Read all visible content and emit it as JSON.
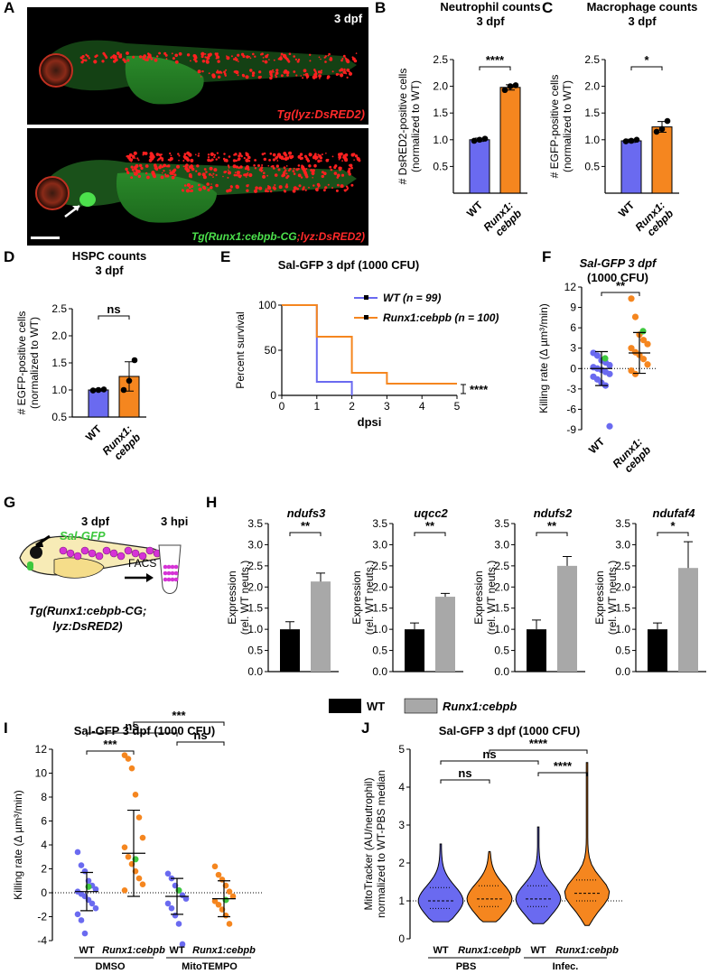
{
  "panel_letters": [
    "A",
    "B",
    "C",
    "D",
    "E",
    "F",
    "G",
    "H",
    "I",
    "J"
  ],
  "colors": {
    "wt": "#6a6af0",
    "runx": "#f5861f",
    "green": "#3ec83e",
    "black": "#000000",
    "grey": "#a8a8a8"
  },
  "panel_a": {
    "stage": "3 dpf",
    "label_top": "Tg(lyz:DsRED2)",
    "label_bottom_green": "Tg(Runx1:cebpb-CG",
    "label_bottom_red": ";lyz:DsRED2)"
  },
  "panel_g": {
    "stage_left": "3 dpf",
    "stage_right": "3 hpi",
    "sal_label": "Sal-GFP",
    "facs_label": "FACS",
    "line1": "Tg(Runx1:cebpb-CG;",
    "line2": "lyz:DsRED2)"
  },
  "chart_data": [
    {
      "id": "B",
      "type": "bar",
      "title": "Neutrophil counts",
      "subtitle": "3 dpf",
      "ylabel": [
        "# DsRED2-positive cells",
        "(normalized to WT)"
      ],
      "ylim": [
        0,
        2.5
      ],
      "yticks": [
        "0.5",
        "1.0",
        "1.5",
        "2.0",
        "2.5"
      ],
      "categories": [
        "WT",
        "Runx1: cebpb"
      ],
      "values": [
        1.0,
        1.98
      ],
      "errors": [
        0.03,
        0.05
      ],
      "points": [
        [
          0.98,
          1.0,
          1.02
        ],
        [
          1.93,
          2.0,
          2.02
        ]
      ],
      "significance": "****"
    },
    {
      "id": "C",
      "type": "bar",
      "title": "Macrophage counts",
      "subtitle": "3 dpf",
      "ylabel": [
        "# EGFP-positive cells",
        "(normalized to WT)"
      ],
      "ylim": [
        0,
        2.5
      ],
      "yticks": [
        "0.5",
        "1.0",
        "1.5",
        "2.0",
        "2.5"
      ],
      "categories": [
        "WT",
        "Runx1: cebpb"
      ],
      "values": [
        0.98,
        1.24
      ],
      "errors": [
        0.03,
        0.1
      ],
      "points": [
        [
          0.97,
          0.98,
          1.0
        ],
        [
          1.15,
          1.2,
          1.35
        ]
      ],
      "significance": "*"
    },
    {
      "id": "D",
      "type": "bar",
      "title": "HSPC counts",
      "subtitle": "3 dpf",
      "ylabel": [
        "# EGFP-positive cells",
        "(normalized to WT)"
      ],
      "ylim": [
        0.5,
        2.5
      ],
      "yticks": [
        "0.5",
        "1.0",
        "1.5",
        "2.0",
        "2.5"
      ],
      "categories": [
        "WT",
        "Runx1: cebpb"
      ],
      "values": [
        1.0,
        1.25
      ],
      "errors": [
        0.02,
        0.27
      ],
      "points": [
        [
          0.99,
          1.0,
          1.01
        ],
        [
          1.0,
          1.17,
          1.55
        ]
      ],
      "significance": "ns"
    },
    {
      "id": "E",
      "type": "line",
      "title": "Sal-GFP 3 dpf (1000 CFU)",
      "xlabel": "dpsi",
      "ylabel": "Percent survival",
      "xlim": [
        0,
        5
      ],
      "ylim": [
        0,
        100
      ],
      "xticks": [
        "0",
        "1",
        "2",
        "3",
        "4",
        "5"
      ],
      "yticks": [
        "0",
        "50",
        "100"
      ],
      "series": [
        {
          "name": "WT (n = 99)",
          "x": [
            0,
            1,
            1,
            2,
            2
          ],
          "y": [
            100,
            100,
            15,
            15,
            0
          ]
        },
        {
          "name": "Runx1:cebpb (n = 100)",
          "x": [
            0,
            1,
            1,
            2,
            2,
            3,
            3,
            5
          ],
          "y": [
            100,
            100,
            65,
            65,
            25,
            25,
            13,
            13
          ]
        }
      ],
      "significance": "****"
    },
    {
      "id": "F",
      "type": "scatter",
      "title": "Sal-GFP 3 dpf",
      "subtitle": "(1000 CFU)",
      "ylabel": "Killing rate (Δ µm³/min)",
      "ylim": [
        -9,
        12
      ],
      "yticks": [
        "-9",
        "-6",
        "-3",
        "0",
        "3",
        "6",
        "9",
        "12"
      ],
      "categories": [
        "WT",
        "Runx1: cebpb"
      ],
      "means": [
        0.0,
        2.3
      ],
      "sd": [
        2.5,
        3.0
      ],
      "points": [
        [
          2.3,
          1.9,
          1.2,
          0.9,
          0.5,
          0.2,
          0.0,
          -0.2,
          -0.5,
          -0.8,
          -1.2,
          -1.6,
          -2.1,
          -2.5,
          -8.5
        ],
        [
          10.3,
          7.6,
          5.0,
          4.2,
          3.6,
          3.0,
          2.4,
          2.0,
          1.4,
          0.6,
          -0.3,
          -0.8
        ]
      ],
      "highlight": [
        [
          1.5
        ],
        [
          5.5
        ]
      ],
      "significance": "**"
    },
    {
      "id": "H",
      "type": "bar",
      "ylabel": [
        "Expression",
        "(rel. WT neuts.)"
      ],
      "ylim": [
        0,
        3.5
      ],
      "yticks": [
        "0.0",
        "0.5",
        "1.0",
        "1.5",
        "2.0",
        "2.5",
        "3.0",
        "3.5"
      ],
      "genes": [
        {
          "name": "ndufs3",
          "values": [
            1.0,
            2.13
          ],
          "errors": [
            0.18,
            0.2
          ],
          "significance": "**"
        },
        {
          "name": "uqcc2",
          "values": [
            1.0,
            1.77
          ],
          "errors": [
            0.15,
            0.08
          ],
          "significance": "**"
        },
        {
          "name": "ndufs2",
          "values": [
            1.0,
            2.5
          ],
          "errors": [
            0.22,
            0.22
          ],
          "significance": "**"
        },
        {
          "name": "ndufaf4",
          "values": [
            1.0,
            2.45
          ],
          "errors": [
            0.15,
            0.62
          ],
          "significance": "*"
        }
      ],
      "legend": [
        "WT",
        "Runx1:cebpb"
      ]
    },
    {
      "id": "I",
      "type": "scatter",
      "title": "Sal-GFP 3 dpf (1000 CFU)",
      "ylabel": "Killing rate (Δ µm³/min)",
      "ylim": [
        -4,
        12
      ],
      "yticks": [
        "-4",
        "-2",
        "0",
        "2",
        "4",
        "6",
        "8",
        "10",
        "12"
      ],
      "categories": [
        "WT",
        "Runx1:cebpb",
        "WT",
        "Runx1:cebpb"
      ],
      "groups": [
        "DMSO",
        "MitoTEMPO"
      ],
      "means": [
        0.1,
        3.3,
        -0.3,
        -0.5
      ],
      "sd": [
        1.6,
        3.6,
        1.5,
        1.5
      ],
      "points": [
        [
          3.4,
          2.3,
          1.8,
          1.0,
          0.6,
          0.3,
          0.1,
          -0.1,
          -0.3,
          -0.6,
          -0.9,
          -1.3,
          -1.8,
          -2.3,
          -3.4
        ],
        [
          11.5,
          11.2,
          10.4,
          8.2,
          6.3,
          4.6,
          3.8,
          3.0,
          2.4,
          1.8,
          1.2,
          0.7,
          0.2
        ],
        [
          1.6,
          1.2,
          0.6,
          0.2,
          -0.2,
          -0.5,
          -0.9,
          -1.3,
          -1.9,
          -2.6,
          -4.3
        ],
        [
          2.2,
          1.5,
          1.1,
          0.6,
          0.1,
          -0.3,
          -0.7,
          -1.0,
          -1.4,
          -1.9,
          -2.6
        ]
      ],
      "highlight": [
        [
          0.5
        ],
        [
          2.8
        ],
        [
          0.2
        ],
        [
          -0.6
        ]
      ],
      "comparisons": [
        "***",
        "ns",
        "***",
        "ns"
      ]
    },
    {
      "id": "J",
      "type": "violin",
      "title": "Sal-GFP 3 dpf (1000 CFU)",
      "ylabel": [
        "MitoTracker (AU/neutrophil)",
        "normalized to WT-PBS median"
      ],
      "ylim": [
        0,
        5
      ],
      "yticks": [
        "0",
        "1",
        "2",
        "3",
        "4",
        "5"
      ],
      "categories": [
        "WT",
        "Runx1:cebpb",
        "WT",
        "Runx1:cebpb"
      ],
      "groups": [
        "PBS",
        "Infec."
      ],
      "medians": [
        1.0,
        1.05,
        1.05,
        1.2
      ],
      "max": [
        2.5,
        2.3,
        2.95,
        4.65
      ],
      "min": [
        0.45,
        0.45,
        0.4,
        0.35
      ],
      "comparisons": [
        "ns",
        "ns",
        "****",
        "****"
      ]
    }
  ]
}
